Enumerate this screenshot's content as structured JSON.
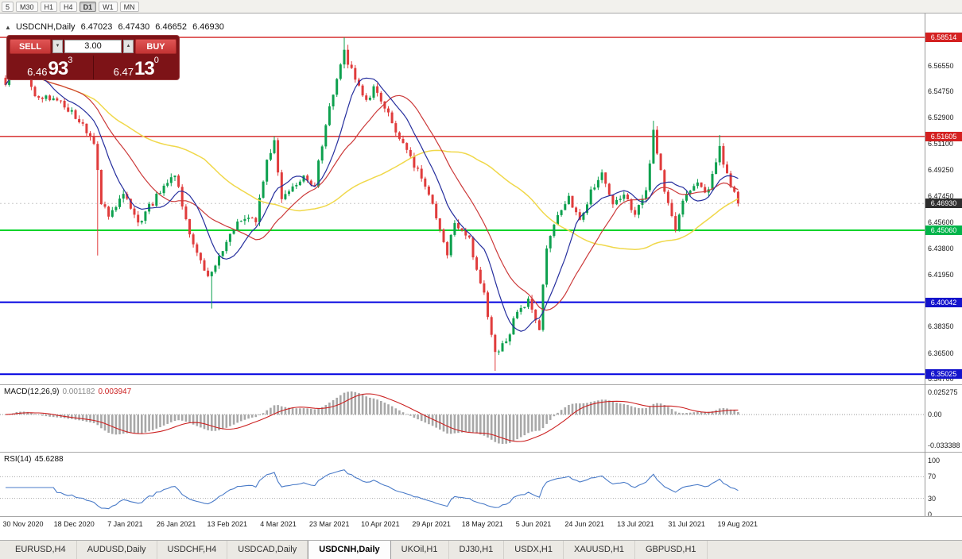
{
  "icons": {
    "collapse_panel": "▲",
    "volume_decrease": "▼",
    "volume_increase": "▲"
  },
  "toolbar": {
    "timeframes": [
      {
        "label": "5",
        "active": false
      },
      {
        "label": "M30",
        "active": false
      },
      {
        "label": "H1",
        "active": false
      },
      {
        "label": "H4",
        "active": false
      },
      {
        "label": "D1",
        "active": true
      },
      {
        "label": "W1",
        "active": false
      },
      {
        "label": "MN",
        "active": false
      }
    ]
  },
  "chart": {
    "symbol_line": {
      "symbol": "USDCNH,Daily",
      "open": "6.47023",
      "high": "6.47430",
      "low": "6.46652",
      "close": "6.46930"
    },
    "trade_panel": {
      "sell_label": "SELL",
      "buy_label": "BUY",
      "volume": "3.00",
      "sell_price": {
        "prefix": "6.46",
        "big": "93",
        "sup": "3"
      },
      "buy_price": {
        "prefix": "6.47",
        "big": "13",
        "sup": "0"
      }
    },
    "price_axis": {
      "labels": [
        {
          "text": "6.56550",
          "price": 6.5655
        },
        {
          "text": "6.54750",
          "price": 6.5475
        },
        {
          "text": "6.52900",
          "price": 6.529
        },
        {
          "text": "6.51100",
          "price": 6.511
        },
        {
          "text": "6.49250",
          "price": 6.4925
        },
        {
          "text": "6.47450",
          "price": 6.4745
        },
        {
          "text": "6.45600",
          "price": 6.456
        },
        {
          "text": "6.43800",
          "price": 6.438
        },
        {
          "text": "6.41950",
          "price": 6.4195
        },
        {
          "text": "6.38350",
          "price": 6.3835
        },
        {
          "text": "6.36500",
          "price": 6.365
        },
        {
          "text": "6.34700",
          "price": 6.347
        }
      ],
      "badges": [
        {
          "text": "6.58514",
          "price": 6.58514,
          "color": "#d42020"
        },
        {
          "text": "6.51605",
          "price": 6.51605,
          "color": "#d42020"
        },
        {
          "text": "6.46930",
          "price": 6.4693,
          "color": "#2e2e2e"
        },
        {
          "text": "6.45060",
          "price": 6.4506,
          "color": "#00b44a"
        },
        {
          "text": "6.40042",
          "price": 6.40042,
          "color": "#1414cc"
        },
        {
          "text": "6.35025",
          "price": 6.35025,
          "color": "#1414cc"
        }
      ]
    }
  },
  "chart_data": {
    "type": "candlestick",
    "symbol": "USDCNH",
    "timeframe": "Daily",
    "ohlc": {
      "open": 6.47023,
      "high": 6.4743,
      "low": 6.46652,
      "close": 6.4693
    },
    "price_axis_range": {
      "top": 6.6018,
      "bottom": 6.3437
    },
    "num_candles": 200,
    "candle_colors": {
      "up": "#0da04e",
      "down": "#e03c3c"
    },
    "levels": [
      {
        "price": 6.58514,
        "color": "#d42020",
        "width": 1.4
      },
      {
        "price": 6.51605,
        "color": "#d42020",
        "width": 1.4
      },
      {
        "price": 6.4506,
        "color": "#00d42a",
        "width": 2
      },
      {
        "price": 6.40042,
        "color": "#0000e0",
        "width": 2
      },
      {
        "price": 6.35025,
        "color": "#0000e0",
        "width": 2
      }
    ],
    "anchors": [
      [
        0,
        6.552
      ],
      [
        3,
        6.571
      ],
      [
        8,
        6.545
      ],
      [
        14,
        6.541
      ],
      [
        20,
        6.528
      ],
      [
        24,
        6.512
      ],
      [
        26,
        6.47
      ],
      [
        28,
        6.462
      ],
      [
        32,
        6.476
      ],
      [
        36,
        6.455
      ],
      [
        42,
        6.478
      ],
      [
        46,
        6.489
      ],
      [
        50,
        6.448
      ],
      [
        55,
        6.419
      ],
      [
        58,
        6.432
      ],
      [
        63,
        6.455
      ],
      [
        68,
        6.458
      ],
      [
        71,
        6.5
      ],
      [
        73,
        6.512
      ],
      [
        75,
        6.47
      ],
      [
        78,
        6.48
      ],
      [
        81,
        6.488
      ],
      [
        84,
        6.483
      ],
      [
        88,
        6.538
      ],
      [
        90,
        6.556
      ],
      [
        92,
        6.574
      ],
      [
        95,
        6.557
      ],
      [
        98,
        6.541
      ],
      [
        100,
        6.549
      ],
      [
        104,
        6.531
      ],
      [
        108,
        6.511
      ],
      [
        112,
        6.492
      ],
      [
        116,
        6.471
      ],
      [
        120,
        6.433
      ],
      [
        122,
        6.457
      ],
      [
        126,
        6.443
      ],
      [
        130,
        6.406
      ],
      [
        133,
        6.366
      ],
      [
        136,
        6.373
      ],
      [
        139,
        6.394
      ],
      [
        142,
        6.401
      ],
      [
        145,
        6.383
      ],
      [
        147,
        6.439
      ],
      [
        150,
        6.461
      ],
      [
        153,
        6.472
      ],
      [
        156,
        6.456
      ],
      [
        159,
        6.477
      ],
      [
        162,
        6.491
      ],
      [
        165,
        6.469
      ],
      [
        168,
        6.478
      ],
      [
        171,
        6.461
      ],
      [
        174,
        6.478
      ],
      [
        176,
        6.52
      ],
      [
        178,
        6.49
      ],
      [
        180,
        6.469
      ],
      [
        182,
        6.453
      ],
      [
        185,
        6.477
      ],
      [
        188,
        6.482
      ],
      [
        191,
        6.478
      ],
      [
        194,
        6.507
      ],
      [
        196,
        6.489
      ],
      [
        199,
        6.4693
      ]
    ],
    "special_wicks": [
      {
        "i": 3,
        "high": 6.578
      },
      {
        "i": 25,
        "low": 6.433
      },
      {
        "i": 56,
        "low": 6.396
      },
      {
        "i": 92,
        "high": 6.58514
      },
      {
        "i": 93,
        "high": 6.58
      },
      {
        "i": 133,
        "low": 6.3525
      },
      {
        "i": 176,
        "high": 6.527
      },
      {
        "i": 194,
        "high": 6.517
      }
    ],
    "moving_averages": [
      {
        "name": "slow-ma",
        "period": 55,
        "color": "#f0d84a",
        "width": 1.5
      },
      {
        "name": "mid-ma",
        "period": 21,
        "color": "#cc3a3a",
        "width": 1.2
      },
      {
        "name": "fast-ma",
        "period": 10,
        "color": "#262f9e",
        "width": 1.2
      }
    ],
    "macd": {
      "name": "MACD(12,26,9)",
      "value_main": "0.001182",
      "value_signal": "0.003947",
      "fast": 12,
      "slow": 26,
      "signal": 9,
      "axis": [
        "0.025275",
        "0.00",
        "-0.033388"
      ],
      "histogram_color": "#a8a8a8",
      "signal_color": "#cc2222"
    },
    "rsi": {
      "name": "RSI(14)",
      "value": "45.6288",
      "period": 14,
      "color": "#4a7bc8",
      "axis": [
        {
          "text": "100",
          "v": 100
        },
        {
          "text": "70",
          "v": 70
        },
        {
          "text": "30",
          "v": 30
        },
        {
          "text": "0",
          "v": 0
        }
      ],
      "levels": [
        70,
        30
      ]
    },
    "x_labels": [
      "30 Nov 2020",
      "18 Dec 2020",
      "7 Jan 2021",
      "26 Jan 2021",
      "13 Feb 2021",
      "4 Mar 2021",
      "23 Mar 2021",
      "10 Apr 2021",
      "29 Apr 2021",
      "18 May 2021",
      "5 Jun 2021",
      "24 Jun 2021",
      "13 Jul 2021",
      "31 Jul 2021",
      "19 Aug 2021"
    ]
  },
  "bottom_tabs": [
    {
      "label": "EURUSD,H4",
      "active": false
    },
    {
      "label": "AUDUSD,Daily",
      "active": false
    },
    {
      "label": "USDCHF,H4",
      "active": false
    },
    {
      "label": "USDCAD,Daily",
      "active": false
    },
    {
      "label": "USDCNH,Daily",
      "active": true
    },
    {
      "label": "UKOil,H1",
      "active": false
    },
    {
      "label": "DJ30,H1",
      "active": false
    },
    {
      "label": "USDX,H1",
      "active": false
    },
    {
      "label": "XAUUSD,H1",
      "active": false
    },
    {
      "label": "GBPUSD,H1",
      "active": false
    }
  ]
}
